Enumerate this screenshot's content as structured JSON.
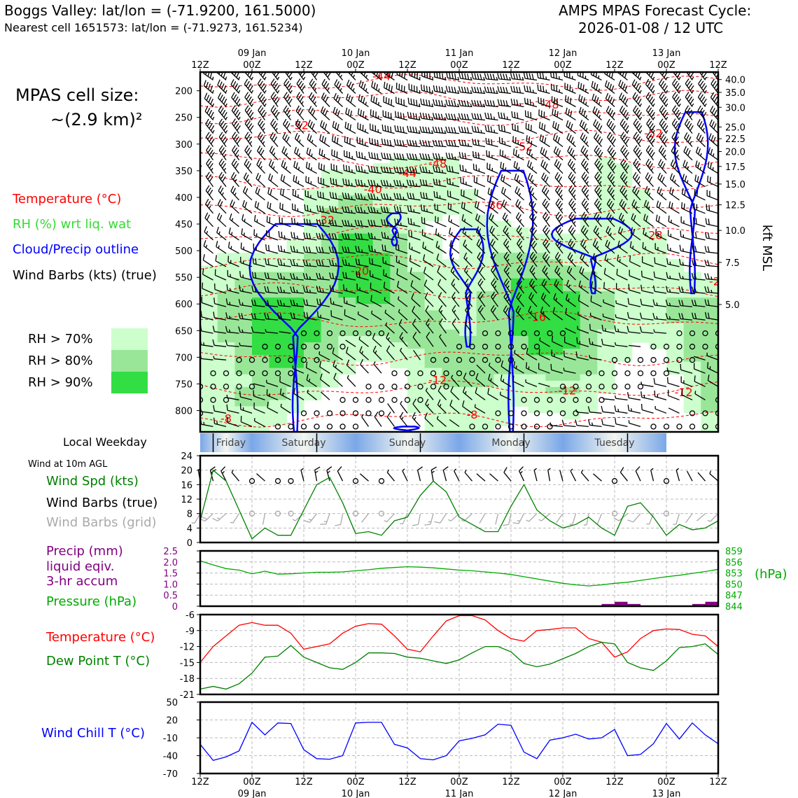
{
  "header": {
    "location_line": "Boggs Valley: lat/lon = (-71.9200, 161.5000)",
    "nearest_cell_line": "Nearest cell 1651573: lat/lon = (-71.9273, 161.5234)",
    "cycle_title": "AMPS MPAS Forecast Cycle:",
    "cycle_value": "2026-01-08 / 12 UTC"
  },
  "left_panel": {
    "cell_size_title": "MPAS cell size:",
    "cell_size_value": "~(2.9 km)²",
    "legend_temperature": "Temperature (°C)",
    "legend_rh": "RH (%) wrt liq. wat",
    "legend_cloud": "Cloud/Precip outline",
    "legend_barbs": "Wind Barbs (kts) (true)",
    "rh_levels": [
      {
        "label": "RH > 70%",
        "color": "#ccffcc"
      },
      {
        "label": "RH > 80%",
        "color": "#99e699"
      },
      {
        "label": "RH > 90%",
        "color": "#33dd44"
      }
    ],
    "local_weekday_label": "Local Weekday",
    "wind_10m_label": "Wind at 10m AGL",
    "wind_spd_label": "Wind Spd (kts)",
    "wind_barbs_true_label": "Wind Barbs (true)",
    "wind_barbs_grid_label": "Wind Barbs (grid)",
    "precip_label_1": "Precip (mm)",
    "precip_label_2": "liquid eqiv.",
    "precip_label_3": "3-hr accum",
    "pressure_label": "Pressure (hPa)",
    "temp_label": "Temperature (°C)",
    "dewpoint_label": "Dew Point T (°C)",
    "windchill_label": "Wind Chill T (°C)"
  },
  "colors": {
    "temperature": "#ff0000",
    "rh_label": "#33dd33",
    "cloud": "#0000ff",
    "wind_spd": "#008000",
    "grid_barbs": "#aaaaaa",
    "precip": "#800080",
    "pressure": "#00aa00",
    "dewpoint": "#008000",
    "windchill": "#0000ff"
  },
  "time_axis": {
    "tick_labels": [
      "12Z",
      "00Z",
      "12Z",
      "00Z",
      "12Z",
      "00Z",
      "12Z",
      "00Z",
      "12Z",
      "00Z",
      "12Z"
    ],
    "date_labels": [
      "09 Jan",
      "10 Jan",
      "11 Jan",
      "12 Jan",
      "13 Jan"
    ]
  },
  "weekdays": [
    "Friday",
    "Saturday",
    "Sunday",
    "Monday",
    "Tuesday"
  ],
  "chart_data": [
    {
      "type": "heatmap",
      "title": "",
      "ylabel": "",
      "ylabel_right": "kft MSL",
      "pressure_ticks": [
        "200",
        "250",
        "300",
        "350",
        "400",
        "450",
        "500",
        "550",
        "600",
        "650",
        "700",
        "750",
        "800"
      ],
      "pressure_values": [
        200,
        250,
        300,
        350,
        400,
        450,
        500,
        550,
        600,
        650,
        700,
        750,
        800
      ],
      "kft_ticks": [
        "40.0",
        "35.0",
        "30.0",
        "25.0",
        "22.5",
        "20.0",
        "17.5",
        "15.0",
        "12.5",
        "10.0",
        "7.5",
        "5.0"
      ],
      "kft_at_pressure": [
        179,
        203,
        231,
        268,
        290,
        314,
        342,
        375,
        414,
        462,
        522,
        601
      ],
      "ylim_hPa": [
        165,
        840
      ],
      "x_range_hours": [
        0,
        120
      ],
      "isotherm_labels": [
        "-44",
        "-48",
        "-52",
        "-52",
        "-52",
        "-48",
        "-44",
        "-40",
        "-36",
        "-32",
        "-28",
        "-20",
        "-24",
        "-16",
        "-12",
        "-12",
        "-12",
        "-8",
        "-8"
      ]
    },
    {
      "type": "line",
      "xlabel": "",
      "ylabel": "Wind Spd (kts)",
      "ylim": [
        0,
        24
      ],
      "yticks": [
        "0",
        "4",
        "8",
        "12",
        "16",
        "20",
        "24"
      ],
      "x_hours": [
        0,
        3,
        6,
        9,
        12,
        15,
        18,
        21,
        24,
        27,
        30,
        33,
        36,
        39,
        42,
        45,
        48,
        51,
        54,
        57,
        60,
        63,
        66,
        69,
        72,
        75,
        78,
        81,
        84,
        87,
        90,
        93,
        96,
        99,
        102,
        105,
        108,
        111,
        114,
        117,
        120
      ],
      "series": [
        {
          "values": [
            6,
            20,
            17,
            9,
            1,
            4,
            2,
            2,
            9,
            16,
            18,
            11,
            2.5,
            3,
            2,
            6,
            7,
            13,
            17,
            14,
            7,
            5,
            3,
            3,
            10,
            16,
            9,
            6,
            4,
            5,
            7,
            4,
            2,
            10,
            11,
            7,
            2,
            5,
            3.5,
            4,
            6
          ]
        }
      ]
    },
    {
      "type": "line",
      "ylabel": "Precip (mm)",
      "ylim": [
        0,
        2.5
      ],
      "yticks": [
        "0",
        "0.5",
        "1.0",
        "1.5",
        "2.0",
        "2.5"
      ],
      "ylabel_right": "(hPa)",
      "pressure_ylim": [
        844,
        859
      ],
      "pressure_ticks": [
        "844",
        "847",
        "850",
        "853",
        "856",
        "859"
      ],
      "x_hours": [
        0,
        3,
        6,
        9,
        12,
        15,
        18,
        21,
        24,
        27,
        30,
        33,
        36,
        39,
        42,
        45,
        48,
        51,
        54,
        57,
        60,
        63,
        66,
        69,
        72,
        75,
        78,
        81,
        84,
        87,
        90,
        93,
        96,
        99,
        102,
        105,
        108,
        111,
        114,
        117,
        120
      ],
      "series": [
        {
          "values": [
            856.3,
            855.2,
            854.2,
            853.8,
            852.8,
            853.5,
            852.7,
            852.8,
            853.0,
            853.2,
            853.2,
            853.3,
            853.6,
            853.9,
            854.3,
            854.5,
            854.7,
            854.6,
            854.4,
            854.1,
            853.8,
            853.6,
            853.3,
            853.0,
            852.6,
            852.0,
            851.4,
            850.8,
            850.2,
            849.8,
            849.5,
            849.8,
            850.2,
            850.5,
            851.0,
            851.5,
            852.0,
            852.4,
            852.9,
            853.4,
            854.0
          ]
        }
      ],
      "precip_bars": [
        {
          "x_hour": 94.5,
          "value": 0.1
        },
        {
          "x_hour": 97.5,
          "value": 0.2
        },
        {
          "x_hour": 100.5,
          "value": 0.1
        },
        {
          "x_hour": 115.5,
          "value": 0.1
        },
        {
          "x_hour": 118.5,
          "value": 0.2
        }
      ]
    },
    {
      "type": "line",
      "ylabel": "Temperature (°C)",
      "ylim": [
        -21,
        -6
      ],
      "yticks": [
        "-21",
        "-18",
        "-15",
        "-12",
        "-9",
        "-6"
      ],
      "x_hours": [
        0,
        3,
        6,
        9,
        12,
        15,
        18,
        21,
        24,
        27,
        30,
        33,
        36,
        39,
        42,
        45,
        48,
        51,
        54,
        57,
        60,
        63,
        66,
        69,
        72,
        75,
        78,
        81,
        84,
        87,
        90,
        93,
        96,
        99,
        102,
        105,
        108,
        111,
        114,
        117,
        120
      ],
      "series": [
        {
          "values": [
            -15,
            -12,
            -10,
            -8,
            -7.5,
            -8,
            -8,
            -9.5,
            -12.5,
            -12,
            -11.5,
            -9.5,
            -8.2,
            -7.7,
            -7.8,
            -10,
            -12.5,
            -13,
            -10,
            -7.2,
            -6.2,
            -6.2,
            -7,
            -9,
            -10.5,
            -11,
            -9,
            -8.8,
            -8.5,
            -8.5,
            -10.5,
            -11.2,
            -14,
            -13,
            -10.5,
            -9,
            -8.7,
            -8.8,
            -9.7,
            -10,
            -12
          ]
        },
        {
          "values": [
            -20,
            -19.5,
            -20,
            -19,
            -17,
            -14,
            -13.8,
            -11.8,
            -14,
            -15,
            -16,
            -16.3,
            -15,
            -13.2,
            -13.2,
            -13.3,
            -14,
            -14.2,
            -14.7,
            -15.2,
            -14.5,
            -13.2,
            -12,
            -12,
            -13,
            -15.2,
            -15.8,
            -15.3,
            -14.3,
            -13.3,
            -12,
            -11.2,
            -11.5,
            -15,
            -16,
            -16.5,
            -14.7,
            -12.2,
            -12,
            -11.5,
            -13.5
          ]
        }
      ]
    },
    {
      "type": "line",
      "ylabel": "Wind Chill T (°C)",
      "ylim": [
        -70,
        50
      ],
      "yticks": [
        "-70",
        "-40",
        "-10",
        "20",
        "50"
      ],
      "x_hours": [
        0,
        3,
        6,
        9,
        12,
        15,
        18,
        21,
        24,
        27,
        30,
        33,
        36,
        39,
        42,
        45,
        48,
        51,
        54,
        57,
        60,
        63,
        66,
        69,
        72,
        75,
        78,
        81,
        84,
        87,
        90,
        93,
        96,
        99,
        102,
        105,
        108,
        111,
        114,
        117,
        120
      ],
      "series": [
        {
          "values": [
            -21,
            -48,
            -42,
            -32,
            16,
            -5,
            15,
            14,
            -30,
            -45,
            -46,
            -40,
            15,
            16,
            16,
            -21,
            -27,
            -45,
            -47,
            -40,
            -15,
            -11,
            -5,
            13,
            11,
            -34,
            -45,
            -14,
            -10,
            -4,
            -12,
            -10,
            4,
            -40,
            -38,
            -20,
            14,
            -12,
            15,
            -5,
            -20
          ]
        }
      ]
    }
  ]
}
